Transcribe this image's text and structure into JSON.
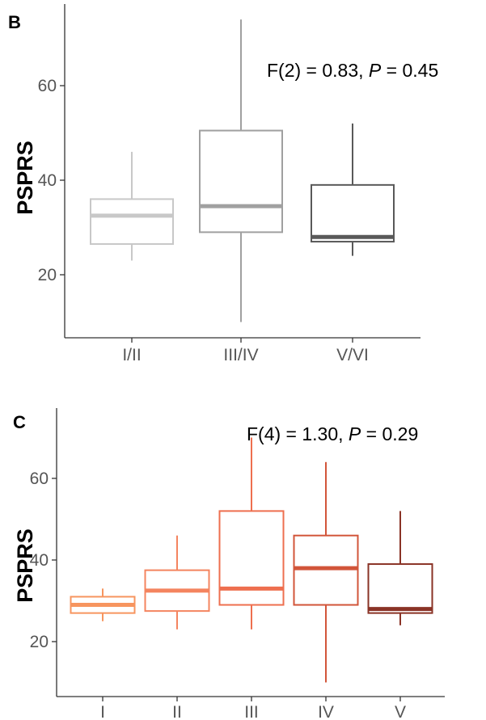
{
  "chart_data": [
    {
      "type": "boxplot",
      "panel": "B",
      "ylabel": "PSPRS",
      "annotation": {
        "pre": "F(2) = 0.83, ",
        "p": "P",
        "post": " = 0.45"
      },
      "ylim": [
        5,
        77
      ],
      "yticks": [
        20,
        40,
        60
      ],
      "categories": [
        "I/II",
        "III/IV",
        "V/VI"
      ],
      "boxes": [
        {
          "name": "I/II",
          "min": 23,
          "q1": 26.5,
          "median": 32.5,
          "q3": 36,
          "max": 46,
          "color": "#c8c8c8"
        },
        {
          "name": "III/IV",
          "min": 10,
          "q1": 29,
          "median": 34.5,
          "q3": 50.5,
          "max": 74,
          "color": "#a0a0a0"
        },
        {
          "name": "V/VI",
          "min": 24,
          "q1": 27,
          "median": 28,
          "q3": 39,
          "max": 52,
          "color": "#595959"
        }
      ]
    },
    {
      "type": "boxplot",
      "panel": "C",
      "ylabel": "PSPRS",
      "annotation": {
        "pre": "F(4) = 1.30, ",
        "p": "P",
        "post": " = 0.29"
      },
      "ylim": [
        5,
        77
      ],
      "yticks": [
        20,
        40,
        60
      ],
      "categories": [
        "I",
        "II",
        "III",
        "IV",
        "V"
      ],
      "boxes": [
        {
          "name": "I",
          "min": 25,
          "q1": 27,
          "median": 29,
          "q3": 31,
          "max": 33,
          "color": "#f7955f"
        },
        {
          "name": "II",
          "min": 23,
          "q1": 27.5,
          "median": 32.5,
          "q3": 37.5,
          "max": 46,
          "color": "#f4845f"
        },
        {
          "name": "III",
          "min": 23,
          "q1": 29,
          "median": 33,
          "q3": 52,
          "max": 70,
          "color": "#ee6f4f"
        },
        {
          "name": "IV",
          "min": 10,
          "q1": 29,
          "median": 38,
          "q3": 46,
          "max": 64,
          "color": "#d2553a"
        },
        {
          "name": "V",
          "min": 24,
          "q1": 27,
          "median": 28,
          "q3": 39,
          "max": 52,
          "color": "#8a3326"
        }
      ]
    }
  ]
}
